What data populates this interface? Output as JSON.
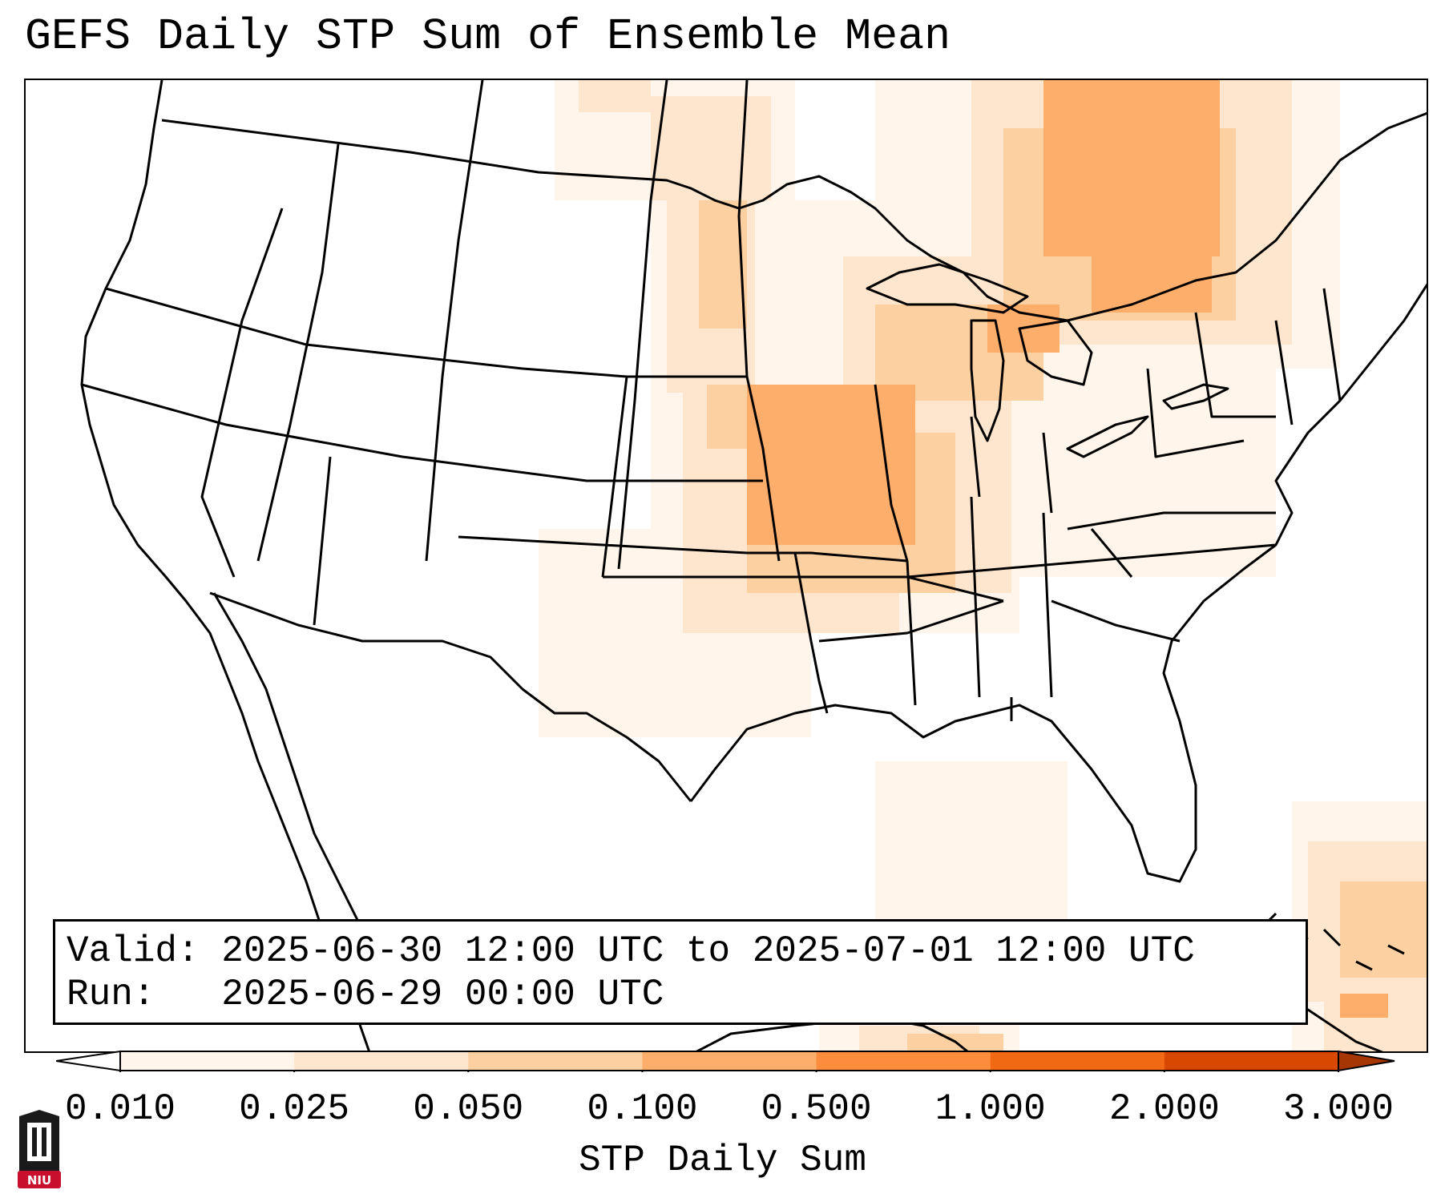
{
  "title": "GEFS Daily STP Sum of Ensemble Mean",
  "info": {
    "valid_line": "Valid: 2025-06-30 12:00 UTC to 2025-07-01 12:00 UTC",
    "run_line": "Run:   2025-06-29 00:00 UTC"
  },
  "colorbar": {
    "label": "STP Daily Sum",
    "ticks": [
      "0.010",
      "0.025",
      "0.050",
      "0.100",
      "0.500",
      "1.000",
      "2.000",
      "3.000"
    ],
    "colors": [
      "#fff5eb",
      "#fee6ce",
      "#fdd0a2",
      "#fdae6b",
      "#fd8d3c",
      "#f16913",
      "#d94801"
    ],
    "extend_max_color": "#a63603",
    "extend_min_color": "#ffffff"
  },
  "logo": {
    "text": "NIU",
    "color": "#c8102e"
  }
}
